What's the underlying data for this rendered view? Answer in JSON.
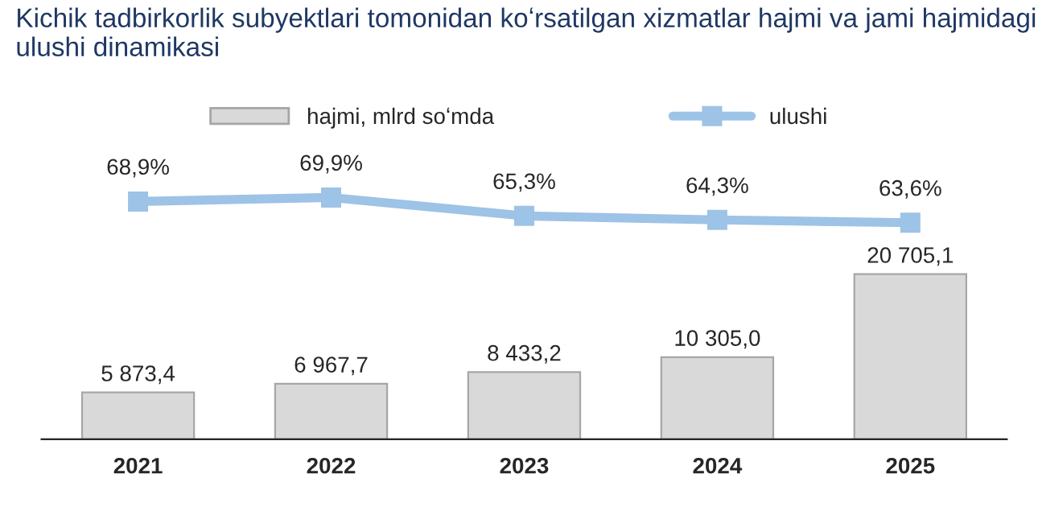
{
  "chart_data": {
    "type": "bar",
    "title": "Kichik tadbirkorlik subyektlari tomonidan koʻrsatilgan xizmatlar hajmi va jami hajmidagi ulushi dinamikasi",
    "categories": [
      "2021",
      "2022",
      "2023",
      "2024",
      "2025"
    ],
    "ylim": [
      0,
      36800
    ],
    "y2lim": [
      9.6,
      82.8
    ],
    "tick_labels": "x",
    "legend": "top",
    "series": [
      {
        "name": "hajmi, mlrd soʻmda",
        "color": "#d9d9d9",
        "values": [
          5873.4,
          6967.7,
          8433.2,
          10305.0,
          20705.1
        ],
        "value_labels": [
          "5 873,4",
          "6 967,7",
          "8 433,2",
          "10 305,0",
          "20 705,1"
        ]
      },
      {
        "name": "ulushi",
        "type": "line",
        "axis": "y2",
        "color": "#9dc3e6",
        "marker": "square",
        "values": [
          68.9,
          69.9,
          65.3,
          64.3,
          63.6
        ],
        "value_labels": [
          "68,9%",
          "69,9%",
          "65,3%",
          "64,3%",
          "63,6%"
        ]
      }
    ]
  }
}
